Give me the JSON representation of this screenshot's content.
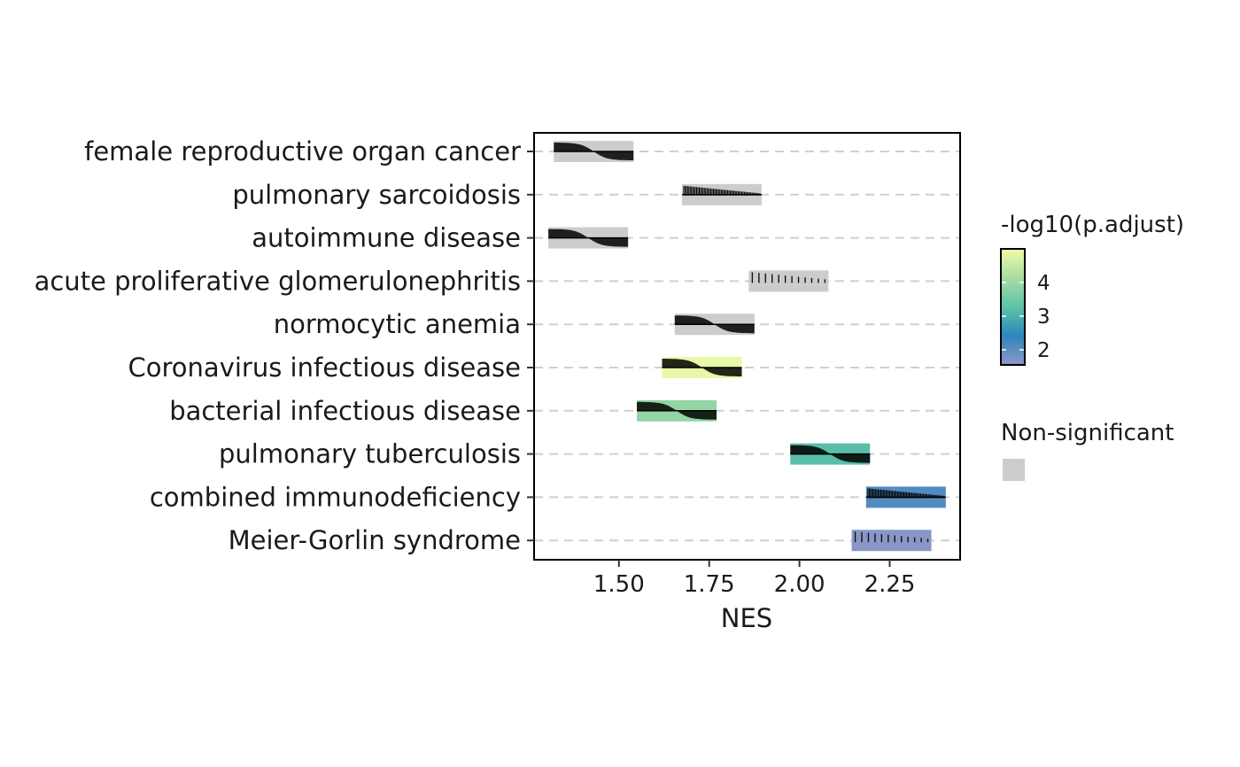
{
  "chart_data": {
    "type": "ridge-barcode",
    "xlabel": "NES",
    "ylabel": "",
    "xlim": [
      1.265,
      2.445
    ],
    "xticks": [
      "1.50",
      "1.75",
      "2.00",
      "2.25"
    ],
    "xtick_values": [
      1.5,
      1.75,
      2.0,
      2.25
    ],
    "grid": "horizontal dashed",
    "rows": [
      {
        "term": "female reproductive organ cancer",
        "nes": 1.43,
        "padj_log10": null,
        "significant": false,
        "density": "smooth"
      },
      {
        "term": "pulmonary sarcoidosis",
        "nes": 1.785,
        "padj_log10": null,
        "significant": false,
        "density": "barcode"
      },
      {
        "term": "autoimmune disease",
        "nes": 1.415,
        "padj_log10": null,
        "significant": false,
        "density": "smooth"
      },
      {
        "term": "acute proliferative glomerulonephritis",
        "nes": 1.97,
        "padj_log10": null,
        "significant": false,
        "density": "sparse"
      },
      {
        "term": "normocytic anemia",
        "nes": 1.765,
        "padj_log10": null,
        "significant": false,
        "density": "smooth"
      },
      {
        "term": "Coronavirus infectious disease",
        "nes": 1.73,
        "padj_log10": 4.9,
        "significant": true,
        "density": "smooth"
      },
      {
        "term": "bacterial infectious disease",
        "nes": 1.66,
        "padj_log10": 3.9,
        "significant": true,
        "density": "smooth"
      },
      {
        "term": "pulmonary tuberculosis",
        "nes": 2.085,
        "padj_log10": 3.2,
        "significant": true,
        "density": "smooth"
      },
      {
        "term": "combined immunodeficiency",
        "nes": 2.295,
        "padj_log10": 2.1,
        "significant": true,
        "density": "barcode"
      },
      {
        "term": "Meier-Gorlin syndrome",
        "nes": 2.255,
        "padj_log10": 1.6,
        "significant": true,
        "density": "sparse"
      }
    ],
    "legend": {
      "colorbar_title": "-log10(p.adjust)",
      "colorbar_ticks": [
        "4",
        "3",
        "2"
      ],
      "colorbar_tick_values": [
        4,
        3,
        2
      ],
      "colorbar_range": [
        1.55,
        5.0
      ],
      "colorbar_colors": [
        "#8f97c8",
        "#2e86bd",
        "#5cc3a6",
        "#a8dca4",
        "#effca6"
      ],
      "nonsig_label": "Non-significant",
      "nonsig_color": "#cccccc",
      "placement": "right"
    }
  }
}
